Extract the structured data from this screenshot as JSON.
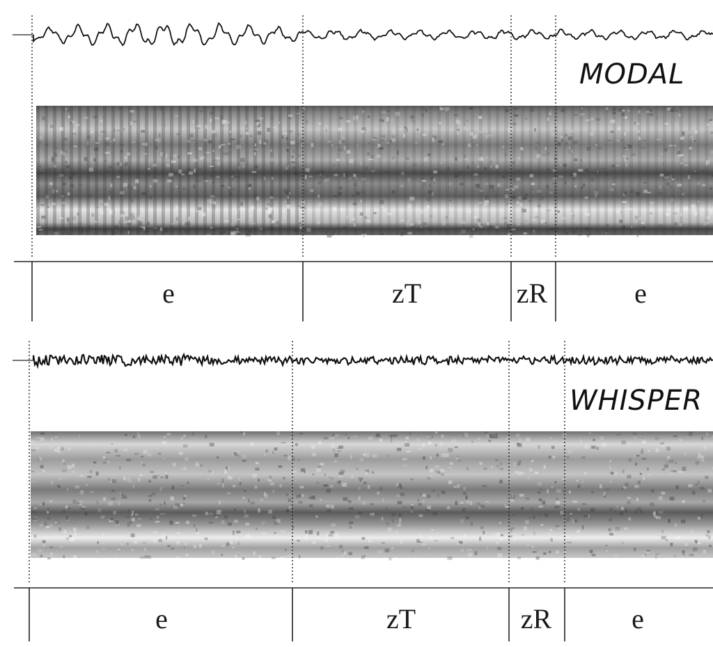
{
  "panels": [
    {
      "id": "modal",
      "mode_label": "MODAL",
      "segments": [
        {
          "label": "e"
        },
        {
          "label": "zT"
        },
        {
          "label": "zR"
        },
        {
          "label": "e"
        }
      ]
    },
    {
      "id": "whisper",
      "mode_label": "WHISPER",
      "segments": [
        {
          "label": "e"
        },
        {
          "label": "zT"
        },
        {
          "label": "zR"
        },
        {
          "label": "e"
        }
      ]
    }
  ],
  "colors": {
    "background": "#ffffff",
    "waveform": "#111111",
    "grid": "#222222",
    "spectrogram_dark": "#3a3a3a",
    "spectrogram_light": "#f4f4f4"
  }
}
